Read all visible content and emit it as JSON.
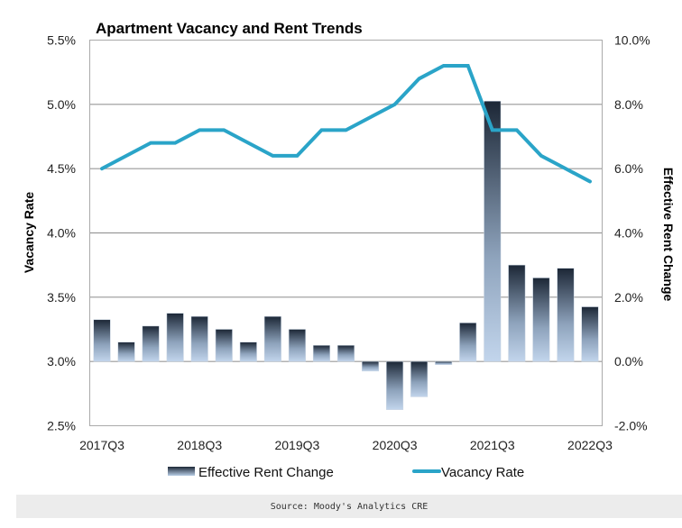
{
  "chart_data": {
    "type": "bar+line",
    "title": "Apartment Vacancy and Rent Trends",
    "x": [
      "2017Q3",
      "2017Q4",
      "2018Q1",
      "2018Q2",
      "2018Q3",
      "2018Q4",
      "2019Q1",
      "2019Q2",
      "2019Q3",
      "2019Q4",
      "2020Q1",
      "2020Q2",
      "2020Q3",
      "2020Q4",
      "2021Q1",
      "2021Q2",
      "2021Q3",
      "2021Q4",
      "2022Q1",
      "2022Q2",
      "2022Q3"
    ],
    "x_tick_labels": [
      "2017Q3",
      "2018Q3",
      "2019Q3",
      "2020Q3",
      "2021Q3",
      "2022Q3"
    ],
    "series": [
      {
        "name": "Effective Rent Change",
        "type": "bar",
        "axis": "right",
        "values": [
          1.3,
          0.6,
          1.1,
          1.5,
          1.4,
          1.0,
          0.6,
          1.4,
          1.0,
          0.5,
          0.5,
          -0.3,
          -1.5,
          -1.1,
          -0.1,
          1.2,
          8.1,
          3.0,
          2.6,
          2.9,
          1.7
        ],
        "color_top": "#1c2736",
        "color_bottom": "#b8cde6"
      },
      {
        "name": "Vacancy Rate",
        "type": "line",
        "axis": "left",
        "values": [
          4.5,
          4.6,
          4.7,
          4.7,
          4.8,
          4.8,
          4.7,
          4.6,
          4.6,
          4.8,
          4.8,
          4.9,
          5.0,
          5.2,
          5.3,
          5.3,
          4.8,
          4.8,
          4.6,
          4.5,
          4.4
        ],
        "color": "#2aa4c8"
      }
    ],
    "ylabel_left": "Vacancy Rate",
    "ylabel_right": "Effective Rent Change",
    "ylim_left": [
      2.5,
      5.5
    ],
    "ylim_right": [
      -2.0,
      10.0
    ],
    "y_ticks_left": [
      "2.5%",
      "3.0%",
      "3.5%",
      "4.0%",
      "4.5%",
      "5.0%",
      "5.5%"
    ],
    "y_ticks_right": [
      "-2.0%",
      "0.0%",
      "2.0%",
      "4.0%",
      "6.0%",
      "8.0%",
      "10.0%"
    ],
    "grid": true,
    "legend_position": "bottom",
    "legend": [
      "Effective Rent Change",
      "Vacancy Rate"
    ]
  },
  "footer": {
    "source": "Source: Moody's Analytics CRE"
  },
  "colors": {
    "grid": "#999999",
    "frame": "#aaaaaa",
    "footer_bg": "#ececec"
  }
}
